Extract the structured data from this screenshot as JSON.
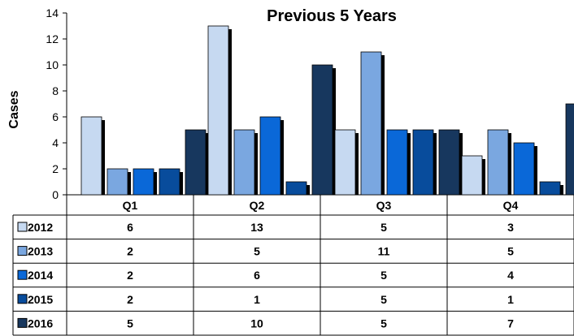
{
  "chart_data": {
    "type": "bar",
    "title": "Previous 5 Years",
    "ylabel": "Cases",
    "xlabel": "",
    "ylim": [
      0,
      14
    ],
    "yticks": [
      0,
      2,
      4,
      6,
      8,
      10,
      12,
      14
    ],
    "grid": false,
    "legend": "data-table-left",
    "categories": [
      "Q1",
      "Q2",
      "Q3",
      "Q4"
    ],
    "series": [
      {
        "name": "2012",
        "values": [
          6,
          13,
          5,
          3
        ],
        "color": "#c6d9f1"
      },
      {
        "name": "2013",
        "values": [
          2,
          5,
          11,
          5
        ],
        "color": "#7aa7e0"
      },
      {
        "name": "2014",
        "values": [
          2,
          6,
          5,
          4
        ],
        "color": "#0a68d8"
      },
      {
        "name": "2015",
        "values": [
          2,
          1,
          5,
          1
        ],
        "color": "#084c9c"
      },
      {
        "name": "2016",
        "values": [
          5,
          10,
          5,
          7
        ],
        "color": "#17375e"
      }
    ]
  }
}
